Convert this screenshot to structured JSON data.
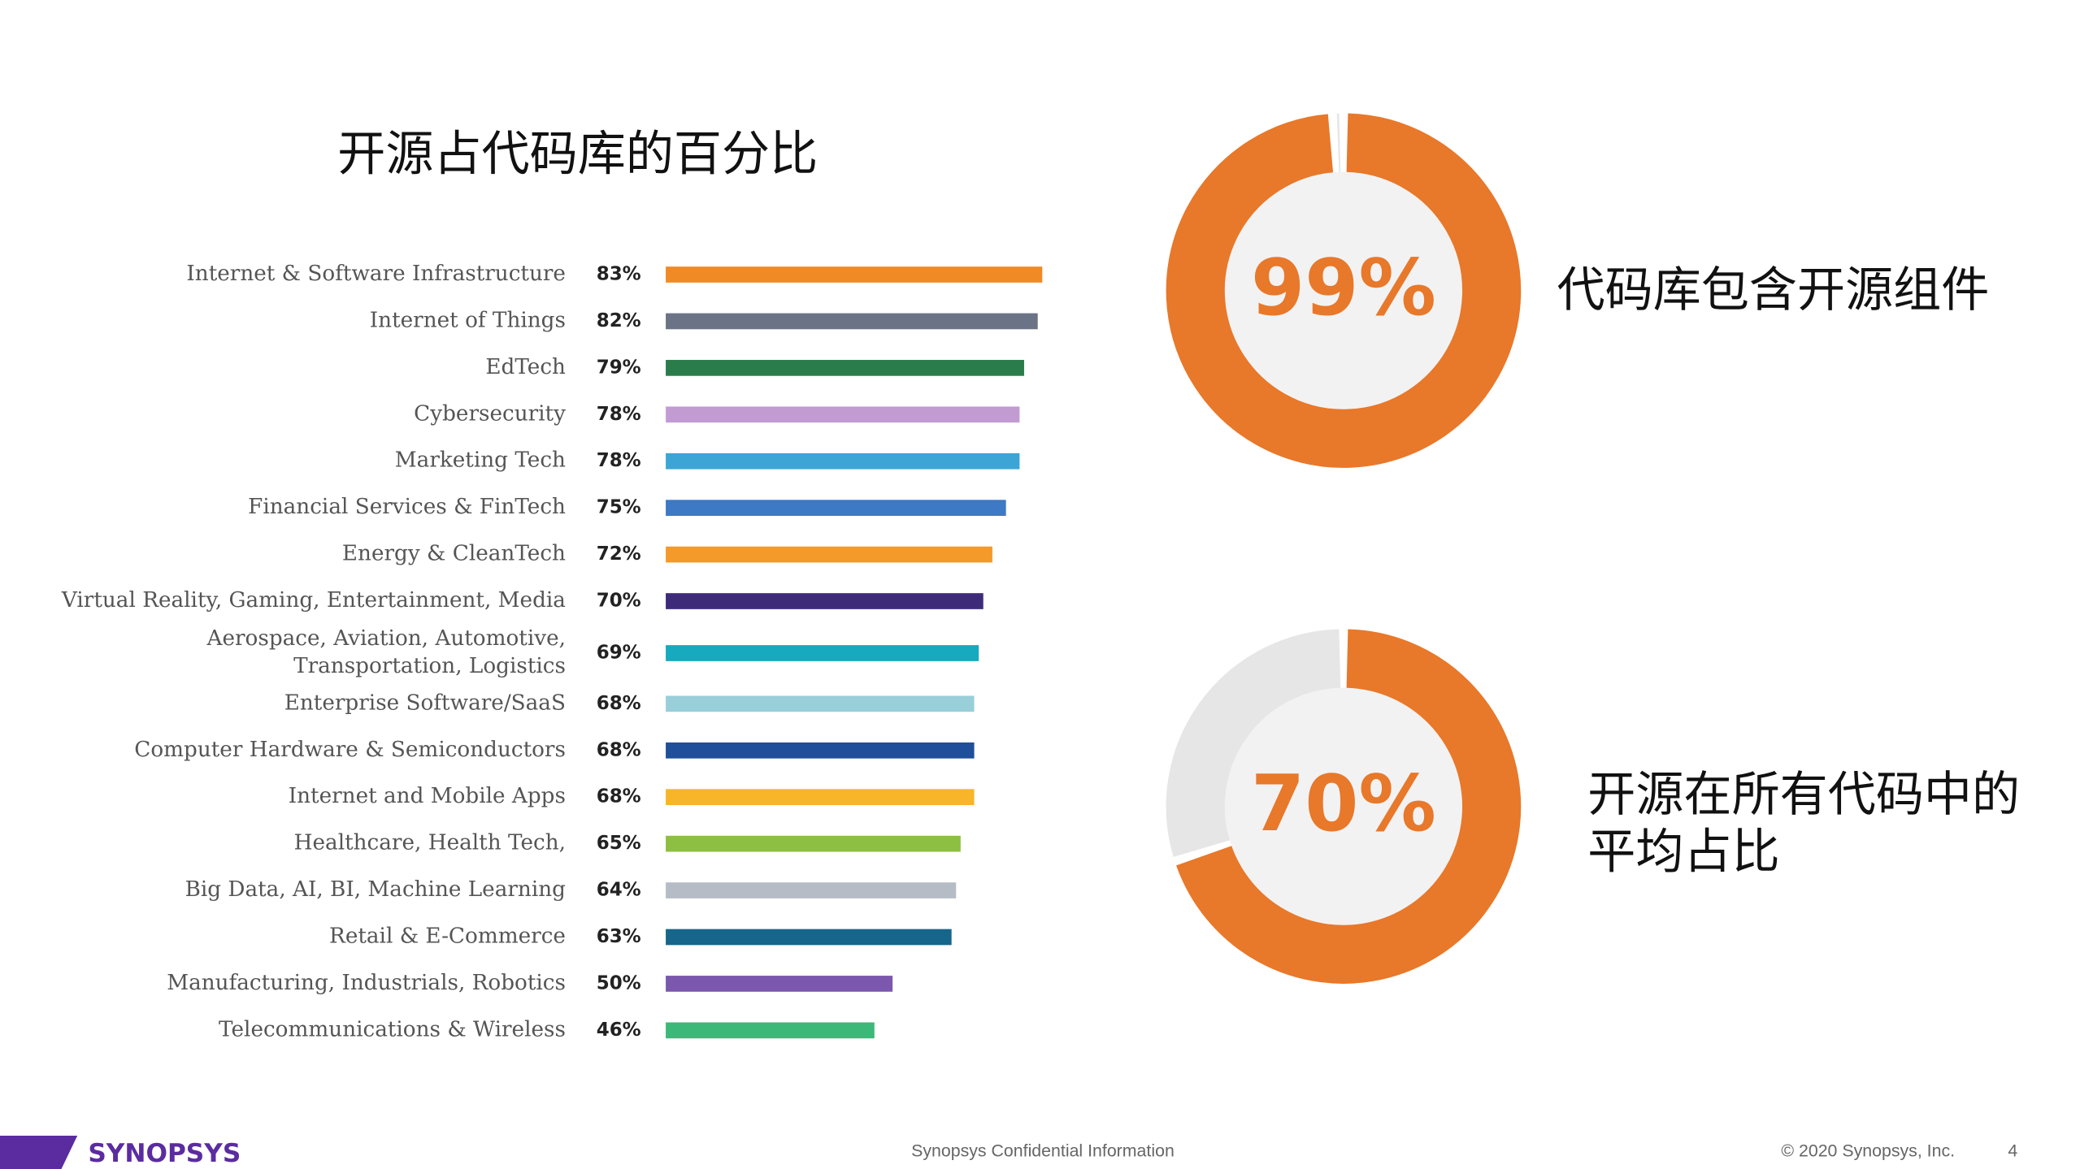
{
  "chart_data": [
    {
      "type": "bar",
      "title": "开源占代码库的百分比",
      "categories": [
        "Internet & Software Infrastructure",
        "Internet of Things",
        "EdTech",
        "Cybersecurity",
        "Marketing Tech",
        "Financial Services & FinTech",
        "Energy & CleanTech",
        "Virtual Reality, Gaming, Entertainment, Media",
        "Aerospace, Aviation, Automotive,\nTransportation, Logistics",
        "Enterprise Software/SaaS",
        "Computer Hardware & Semiconductors",
        "Internet and Mobile Apps",
        "Healthcare, Health Tech,",
        "Big Data, AI, BI, Machine Learning",
        "Retail & E-Commerce",
        "Manufacturing, Industrials, Robotics",
        "Telecommunications & Wireless"
      ],
      "values": [
        83,
        82,
        79,
        78,
        78,
        75,
        72,
        70,
        69,
        68,
        68,
        68,
        65,
        64,
        63,
        50,
        46
      ],
      "value_labels": [
        "83%",
        "82%",
        "79%",
        "78%",
        "78%",
        "75%",
        "72%",
        "70%",
        "69%",
        "68%",
        "68%",
        "68%",
        "65%",
        "64%",
        "63%",
        "50%",
        "46%"
      ],
      "colors": [
        "#f08a24",
        "#6b7486",
        "#2a7d4a",
        "#c39bd3",
        "#3da4d6",
        "#3d79c4",
        "#f39a2a",
        "#3d2b7a",
        "#17a9bd",
        "#98cfd9",
        "#1f4e9a",
        "#f8b52a",
        "#8dbf42",
        "#b6bcc6",
        "#15668a",
        "#7b58ad",
        "#3cb878"
      ]
    },
    {
      "type": "donut",
      "values": [
        99
      ],
      "value_labels": [
        "99%"
      ],
      "color": "#e8782a",
      "caption": "代码库包含开源组件"
    },
    {
      "type": "donut",
      "values": [
        70
      ],
      "value_labels": [
        "70%"
      ],
      "color": "#e8782a",
      "caption": "开源在所有代码中的\n平均占比"
    }
  ],
  "footer": {
    "logo": "SYNOPSYS",
    "confidential": "Synopsys Confidential Information",
    "copyright": "© 2020 Synopsys, Inc.",
    "page": "4"
  }
}
